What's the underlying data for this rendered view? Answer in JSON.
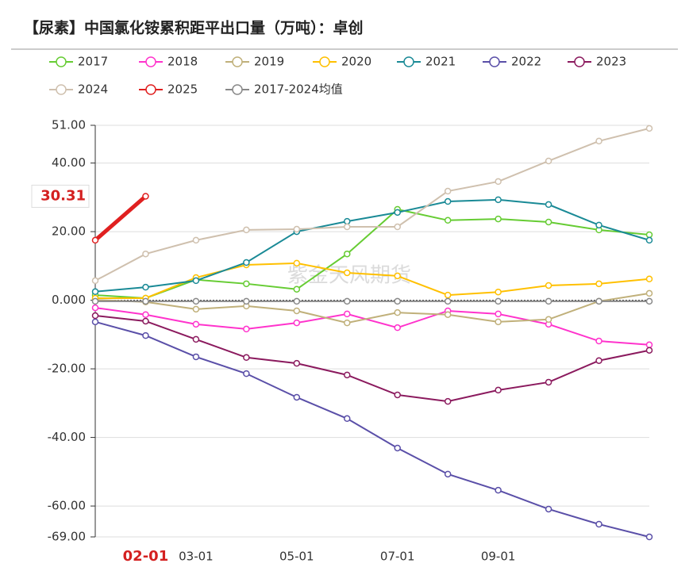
{
  "chart_data": {
    "type": "line",
    "title": "【尿素】中国氯化铵累积距平出口量（万吨）：卓创",
    "watermark": "紫金天风期货",
    "categories": [
      null,
      "02-01",
      "03-01",
      null,
      "05-01",
      null,
      "07-01",
      null,
      "09-01",
      null,
      null,
      null
    ],
    "highlight_category": 1,
    "pointer_value": 30.31,
    "ylim": [
      -69,
      51
    ],
    "yticks": [
      {
        "value": 51,
        "label": "51.00"
      },
      {
        "value": 40,
        "label": "40.00"
      },
      {
        "value": 20,
        "label": "20.00"
      },
      {
        "value": 0,
        "label": "0.000"
      },
      {
        "value": -20,
        "label": "-20.00"
      },
      {
        "value": -40,
        "label": "-40.00"
      },
      {
        "value": -60,
        "label": "-60.00"
      },
      {
        "value": -69,
        "label": "-69.00"
      }
    ],
    "grid": true,
    "legend": "top",
    "series": [
      {
        "name": "2017",
        "color": "#66cc33",
        "values": [
          1.5,
          0.6,
          6,
          4.8,
          3.2,
          13.5,
          26.5,
          23.3,
          23.7,
          22.8,
          20.5,
          19.1
        ]
      },
      {
        "name": "2018",
        "color": "#ff33cc",
        "values": [
          -2.2,
          -4.2,
          -7,
          -8.4,
          -6.6,
          -4,
          -8,
          -3.1,
          -4,
          -7,
          -11.9,
          -13
        ]
      },
      {
        "name": "2019",
        "color": "#c0b07a",
        "values": [
          0.1,
          -0.5,
          -2.6,
          -1.7,
          -3.1,
          -6.6,
          -3.6,
          -4.2,
          -6.3,
          -5.6,
          -0.3,
          2
        ]
      },
      {
        "name": "2020",
        "color": "#ffc000",
        "values": [
          0.6,
          0.6,
          6.6,
          10.3,
          10.8,
          8,
          7.1,
          1.5,
          2.4,
          4.3,
          4.8,
          6.2
        ]
      },
      {
        "name": "2021",
        "color": "#1a8a96",
        "values": [
          2.5,
          3.8,
          5.7,
          11,
          20,
          23,
          25.6,
          28.8,
          29.3,
          27.9,
          21.9,
          17.5
        ]
      },
      {
        "name": "2022",
        "color": "#5a4fa8",
        "values": [
          -6.3,
          -10.3,
          -16.5,
          -21.4,
          -28.3,
          -34.5,
          -43.1,
          -50.7,
          -55.4,
          -60.9,
          -65.3,
          -69
        ]
      },
      {
        "name": "2023",
        "color": "#8b1a5e",
        "values": [
          -4.5,
          -6.1,
          -11.4,
          -16.7,
          -18.4,
          -21.8,
          -27.6,
          -29.5,
          -26.2,
          -23.9,
          -17.6,
          -14.6
        ]
      },
      {
        "name": "2024",
        "color": "#cfc0ae",
        "values": [
          5.7,
          13.5,
          17.5,
          20.5,
          20.7,
          21.4,
          21.4,
          31.8,
          34.6,
          40.6,
          46.4,
          50.1
        ]
      },
      {
        "name": "2025",
        "color": "#e02020",
        "values": [
          17.5,
          30.31,
          null,
          null,
          null,
          null,
          null,
          null,
          null,
          null,
          null,
          null
        ],
        "width": 5
      },
      {
        "name": "2017-2024均值",
        "color": "#888888",
        "values": [
          -0.3,
          -0.3,
          -0.3,
          -0.3,
          -0.3,
          -0.3,
          -0.3,
          -0.3,
          -0.3,
          -0.3,
          -0.3,
          -0.3
        ]
      }
    ]
  }
}
